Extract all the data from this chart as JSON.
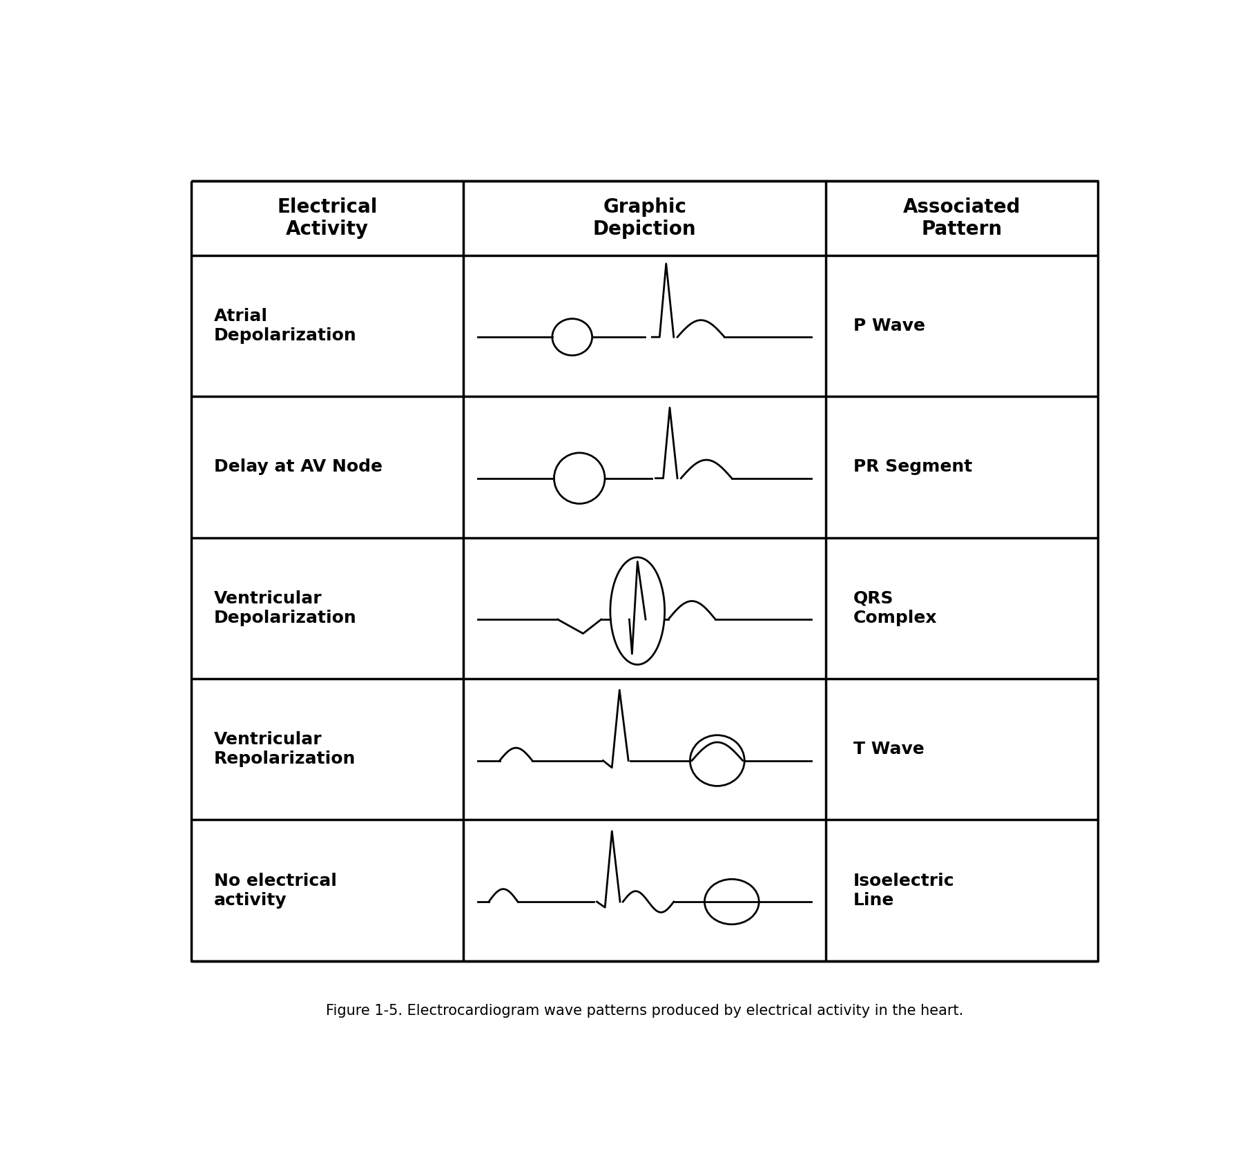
{
  "title": "Figure 1-5. Electrocardiogram wave patterns produced by electrical activity in the heart.",
  "col_headers": [
    "Electrical\nActivity",
    "Graphic\nDepiction",
    "Associated\nPattern"
  ],
  "rows": [
    {
      "activity": "Atrial\nDepolarization",
      "pattern": "P Wave",
      "circle_type": "small_left"
    },
    {
      "activity": "Delay at AV Node",
      "pattern": "PR Segment",
      "circle_type": "medium_left"
    },
    {
      "activity": "Ventricular\nDepolarization",
      "pattern": "QRS\nComplex",
      "circle_type": "large_vertical"
    },
    {
      "activity": "Ventricular\nRepolarization",
      "pattern": "T Wave",
      "circle_type": "medium_right"
    },
    {
      "activity": "No electrical\nactivity",
      "pattern": "Isoelectric\nLine",
      "circle_type": "circle_right_line"
    }
  ],
  "bg_color": "#ffffff",
  "line_color": "#000000",
  "text_color": "#000000",
  "header_fontsize": 20,
  "cell_fontsize": 18,
  "caption_fontsize": 15,
  "fig_width": 18.22,
  "fig_height": 16.96
}
